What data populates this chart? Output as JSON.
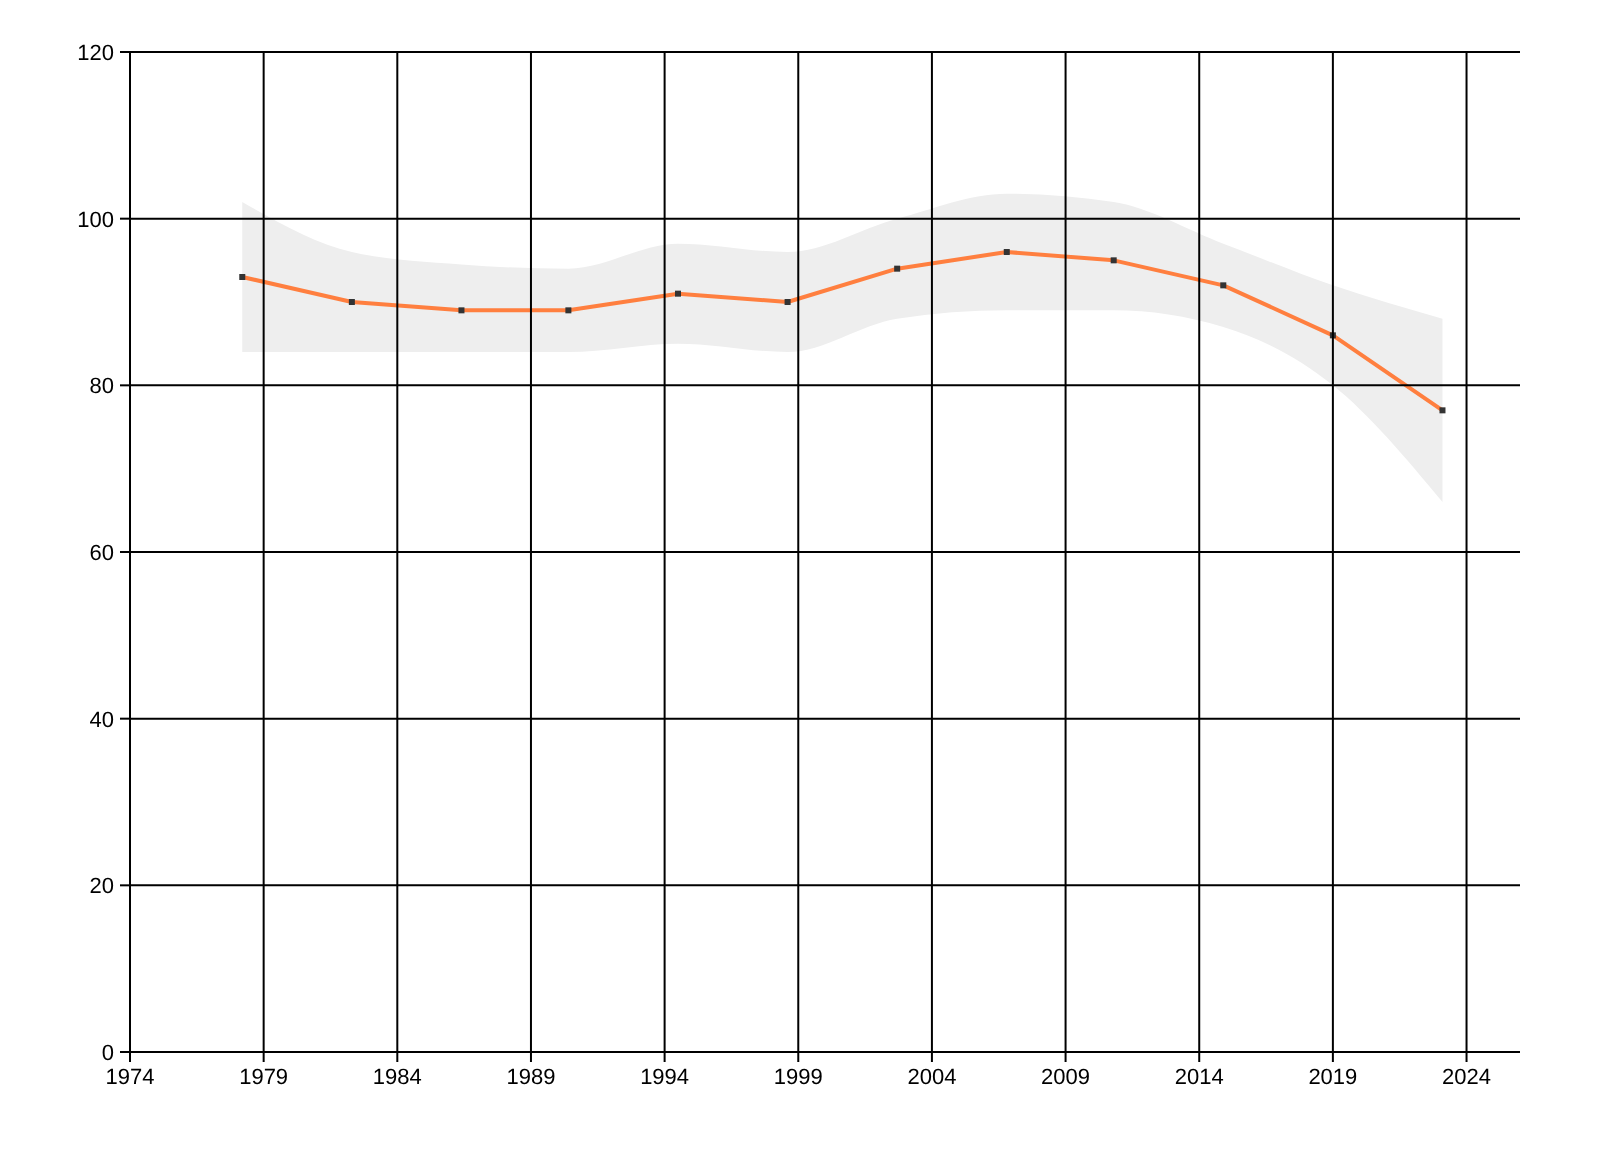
{
  "chart_data": {
    "type": "line",
    "x": [
      1978.2,
      1982.3,
      1986.4,
      1990.4,
      1994.5,
      1998.6,
      2002.7,
      2006.8,
      2010.8,
      2014.9,
      2019.0,
      2023.1
    ],
    "series": [
      {
        "color": "#ff7f3f",
        "values": [
          93,
          90,
          89,
          89,
          91,
          90,
          94,
          96,
          95,
          92,
          86,
          77
        ],
        "lower": [
          84,
          84,
          84,
          84,
          85,
          84,
          88,
          89,
          89,
          87,
          80,
          66
        ],
        "upper": [
          102,
          96,
          94.5,
          94,
          97,
          96,
          100,
          103,
          102,
          97,
          92,
          88
        ]
      }
    ],
    "xlim": [
      1974,
      2026
    ],
    "xticks": [
      1974,
      1979,
      1984,
      1989,
      1994,
      1999,
      2004,
      2009,
      2014,
      2019,
      2024
    ],
    "ylim": [
      0,
      120
    ],
    "yticks": [
      0,
      20,
      40,
      60,
      80,
      100,
      120
    ],
    "grid": true,
    "marker": "square",
    "line_style": "solid"
  }
}
